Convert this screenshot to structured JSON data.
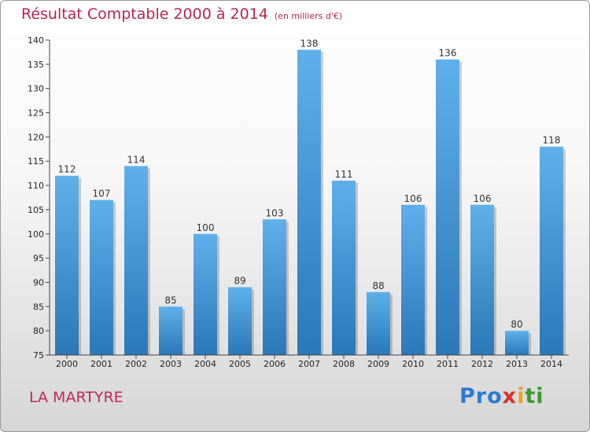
{
  "title": "Résultat Comptable 2000 à 2014",
  "unit": "(en milliers d'€)",
  "commune": "LA MARTYRE",
  "logo": "Proxiti",
  "colors": {
    "title": "#b5264f",
    "bar_top": "#5fb0ea",
    "bar_bottom": "#2a78b8"
  },
  "chart_data": {
    "type": "bar",
    "title": "Résultat Comptable 2000 à 2014",
    "xlabel": "",
    "ylabel": "",
    "ylim": [
      75,
      140
    ],
    "yticks": [
      75,
      80,
      85,
      90,
      95,
      100,
      105,
      110,
      115,
      120,
      125,
      130,
      135,
      140
    ],
    "grid": false,
    "categories": [
      "2000",
      "2001",
      "2002",
      "2003",
      "2004",
      "2005",
      "2006",
      "2007",
      "2008",
      "2009",
      "2010",
      "2011",
      "2012",
      "2013",
      "2014"
    ],
    "values": [
      112,
      107,
      114,
      85,
      100,
      89,
      103,
      138,
      111,
      88,
      106,
      136,
      106,
      80,
      118
    ]
  }
}
